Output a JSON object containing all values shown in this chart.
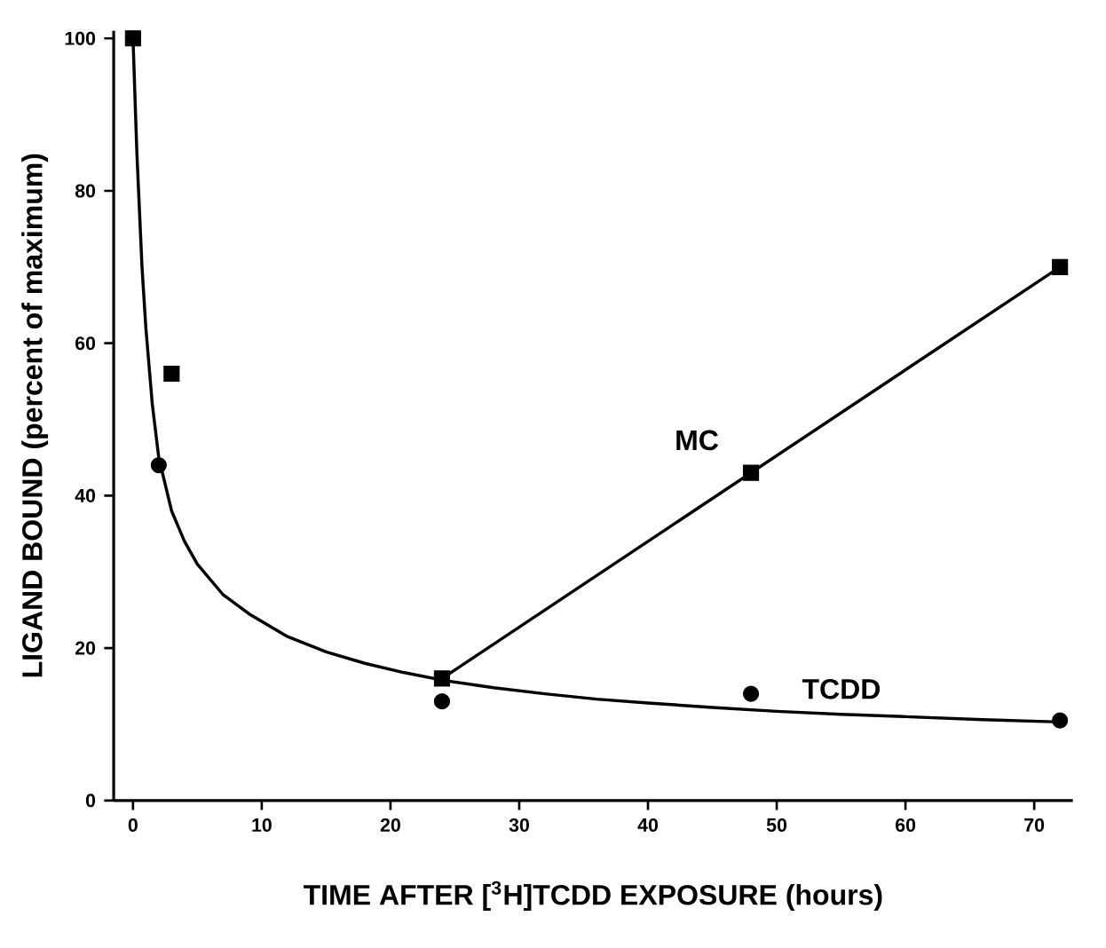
{
  "chart_data": {
    "type": "scatter",
    "xlabel": "TIME AFTER [$^{3}$H]TCDD EXPOSURE (hours)",
    "ylabel": "LIGAND BOUND (percent of maximum)",
    "xlim": [
      -1.5,
      73
    ],
    "ylim": [
      0,
      101
    ],
    "xticks": [
      0,
      10,
      20,
      30,
      40,
      50,
      60,
      70
    ],
    "yticks": [
      0,
      20,
      40,
      60,
      80,
      100
    ],
    "series": [
      {
        "name": "MC",
        "color": "#000000",
        "marker": "square",
        "x": [
          0,
          3,
          24,
          48,
          72
        ],
        "values": [
          100,
          56,
          16,
          43,
          70
        ]
      },
      {
        "type": "line",
        "color": "#000000",
        "x": [
          24,
          48,
          72
        ],
        "values": [
          16,
          43,
          70
        ]
      },
      {
        "name": "TCDD",
        "color": "#000000",
        "marker": "circle",
        "x": [
          2,
          24,
          48,
          72
        ],
        "values": [
          44,
          13,
          14,
          10.5
        ]
      },
      {
        "type": "line",
        "color": "#000000",
        "x": [
          0,
          0.3,
          0.7,
          1,
          1.5,
          2,
          3,
          4,
          5,
          7,
          9,
          12,
          15,
          18,
          21,
          24,
          28,
          32,
          36,
          40,
          45,
          50,
          55,
          60,
          66,
          72
        ],
        "values": [
          100,
          85,
          70,
          62,
          52,
          45,
          38,
          34,
          31,
          27,
          24.5,
          21.5,
          19.5,
          18,
          16.8,
          15.8,
          14.8,
          14,
          13.3,
          12.8,
          12.2,
          11.7,
          11.3,
          11,
          10.6,
          10.3
        ]
      }
    ],
    "grid": false
  }
}
